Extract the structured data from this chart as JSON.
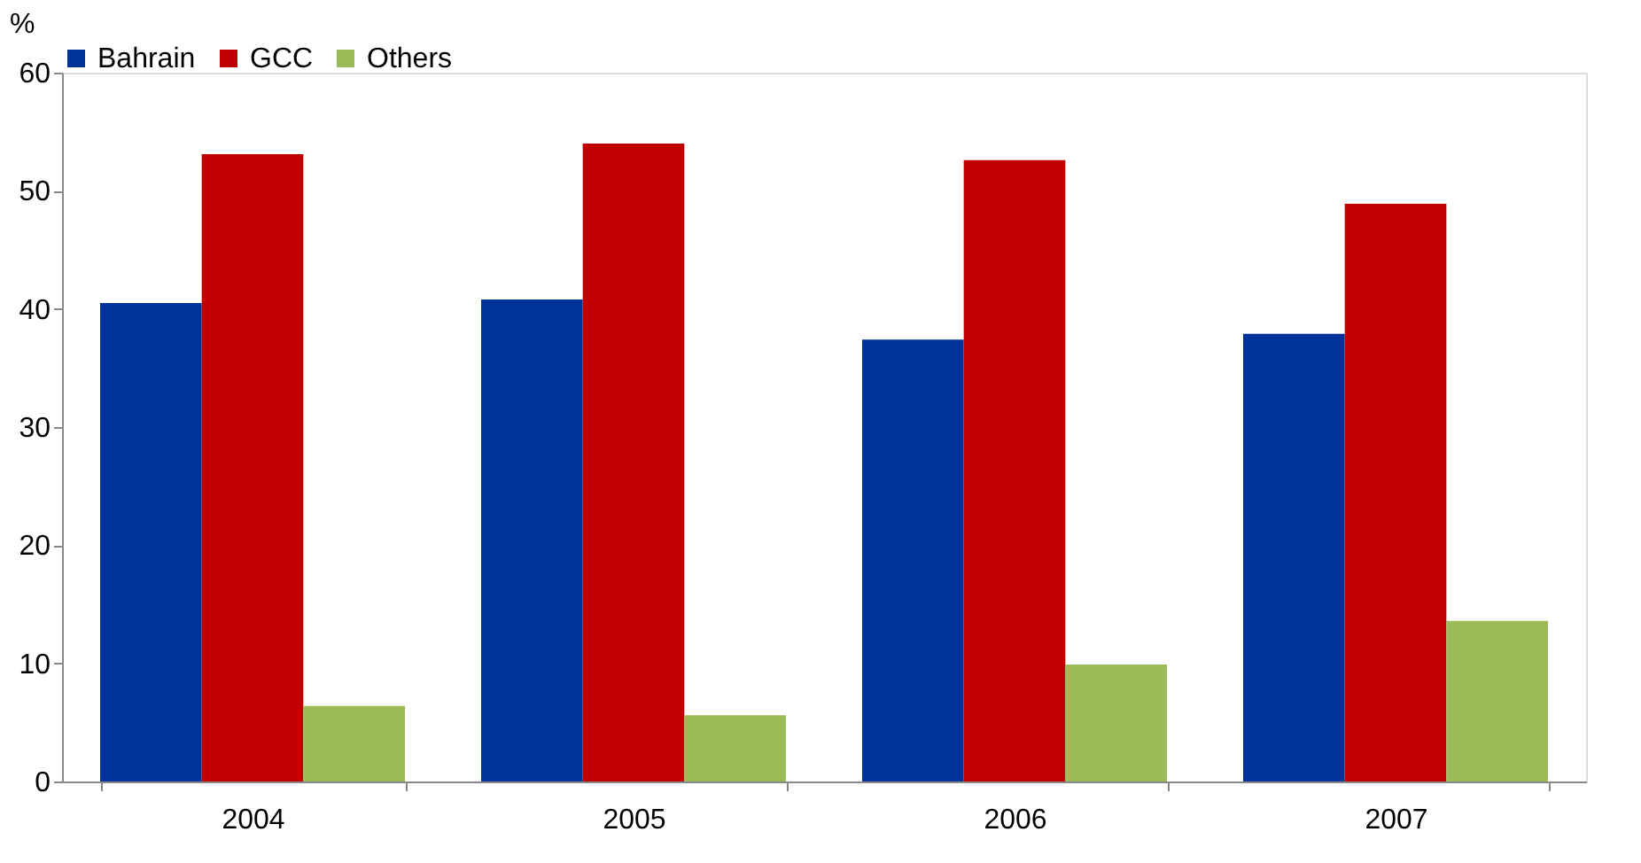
{
  "chart_data": {
    "type": "bar",
    "ylabel": "%",
    "categories": [
      "2004",
      "2005",
      "2006",
      "2007"
    ],
    "series": [
      {
        "name": "Bahrain",
        "color": "#003399",
        "values": [
          40.5,
          40.8,
          37.4,
          37.9
        ]
      },
      {
        "name": "GCC",
        "color": "#c00000",
        "values": [
          53.1,
          54.0,
          52.6,
          48.9
        ]
      },
      {
        "name": "Others",
        "color": "#9bbb59",
        "values": [
          6.4,
          5.6,
          9.9,
          13.6
        ]
      }
    ],
    "ylim": [
      0,
      60
    ],
    "yticks": [
      0,
      10,
      20,
      30,
      40,
      50,
      60
    ],
    "grid": false,
    "legend": "top"
  }
}
